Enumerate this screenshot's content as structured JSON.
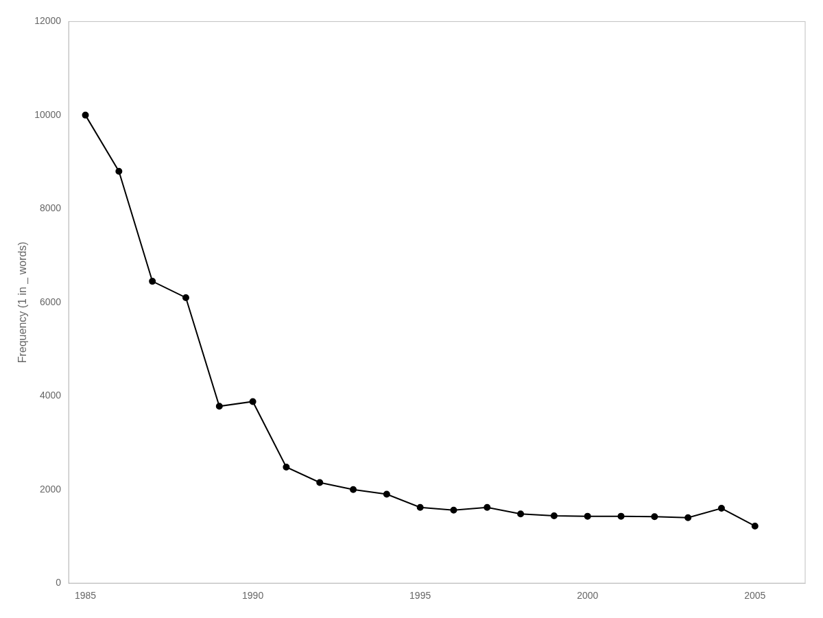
{
  "chart_data": {
    "type": "line",
    "x": [
      1985,
      1986,
      1987,
      1988,
      1989,
      1990,
      1991,
      1992,
      1993,
      1994,
      1995,
      1996,
      1997,
      1998,
      1999,
      2000,
      2001,
      2002,
      2003,
      2004,
      2005
    ],
    "values": [
      10000,
      8800,
      6450,
      6100,
      3780,
      3880,
      2480,
      2150,
      2000,
      1900,
      1620,
      1560,
      1620,
      1480,
      1440,
      1430,
      1430,
      1420,
      1400,
      1600,
      1220
    ],
    "ylabel": "Frequency (1 in _ words)",
    "xlim": [
      1984.5,
      2006.5
    ],
    "ylim": [
      0,
      12000
    ],
    "xticks": [
      1985,
      1990,
      1995,
      2000,
      2005
    ],
    "yticks": [
      0,
      2000,
      4000,
      6000,
      8000,
      10000,
      12000
    ],
    "color": "#000000",
    "marker": "circle",
    "grid": false
  }
}
